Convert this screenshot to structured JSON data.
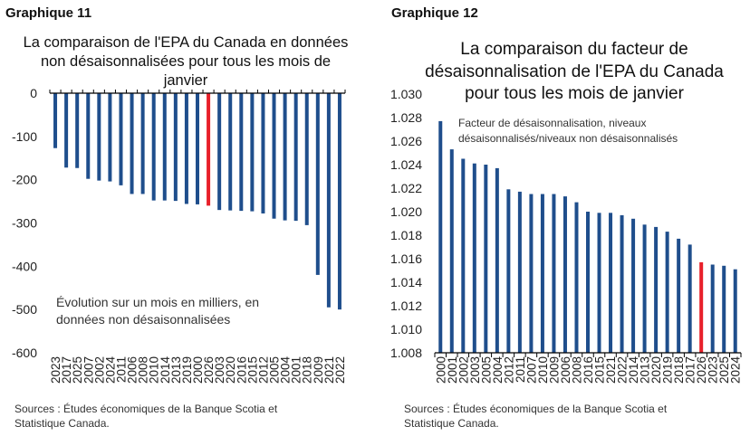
{
  "chart_data": [
    {
      "type": "bar",
      "label": "Graphique 11",
      "title": "La comparaison de l'EPA du Canada en données non désaisonnalisées pour tous les mois de janvier",
      "annotation": "Évolution sur un mois en milliers, en données non désaisonnalisées",
      "source": "Sources : Études économiques de la Banque Scotia et Statistique Canada.",
      "ylim": [
        -600,
        0
      ],
      "yticks": [
        0,
        -100,
        -200,
        -300,
        -400,
        -500,
        -600
      ],
      "categories": [
        "2023",
        "2017",
        "2025",
        "2007",
        "2002",
        "2024",
        "2011",
        "2006",
        "2008",
        "2010",
        "2014",
        "2013",
        "2019",
        "2000",
        "2026",
        "2003",
        "2020",
        "2016",
        "2015",
        "2012",
        "2005",
        "2004",
        "2001",
        "2018",
        "2009",
        "2021",
        "2022"
      ],
      "values": [
        -127,
        -172,
        -173,
        -198,
        -202,
        -204,
        -213,
        -233,
        -233,
        -248,
        -248,
        -249,
        -256,
        -257,
        -260,
        -270,
        -271,
        -272,
        -273,
        -278,
        -290,
        -294,
        -295,
        -305,
        -420,
        -495,
        -500
      ],
      "highlight": "2026",
      "colors": {
        "bar": "#1f4e8c",
        "highlight": "#e8202a"
      }
    },
    {
      "type": "bar",
      "label": "Graphique 12",
      "title": "La comparaison du facteur de désaisonnalisation de l'EPA du Canada pour tous les mois de janvier",
      "annotation": "Facteur de désaisonnalisation, niveaux désaisonnalisés/niveaux non désaisonnalisés",
      "source": "Sources : Études économiques de la Banque Scotia et Statistique Canada.",
      "ylim": [
        1.008,
        1.03
      ],
      "yticks": [
        "1.030",
        "1.028",
        "1.026",
        "1.024",
        "1.022",
        "1.020",
        "1.018",
        "1.016",
        "1.014",
        "1.012",
        "1.010",
        "1.008"
      ],
      "categories": [
        "2000",
        "2001",
        "2002",
        "2003",
        "2005",
        "2004",
        "2012",
        "2011",
        "2007",
        "2010",
        "2009",
        "2006",
        "2008",
        "2016",
        "2015",
        "2021",
        "2022",
        "2014",
        "2013",
        "2020",
        "2019",
        "2018",
        "2017",
        "2026",
        "2023",
        "2025",
        "2024"
      ],
      "values": [
        1.0277,
        1.0253,
        1.0245,
        1.0241,
        1.024,
        1.0237,
        1.0219,
        1.0217,
        1.0215,
        1.0215,
        1.0215,
        1.0213,
        1.0208,
        1.02,
        1.0199,
        1.0199,
        1.0197,
        1.0194,
        1.0189,
        1.0187,
        1.0183,
        1.0177,
        1.0172,
        1.0157,
        1.0155,
        1.0154,
        1.0151
      ],
      "highlight": "2026",
      "colors": {
        "bar": "#1f4e8c",
        "highlight": "#e8202a"
      }
    }
  ]
}
